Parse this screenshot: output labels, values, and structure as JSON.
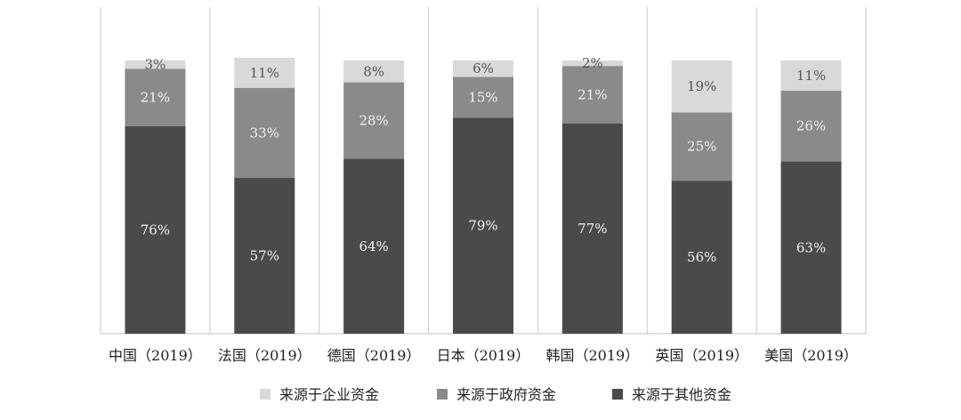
{
  "chart_data": {
    "type": "bar",
    "stacked": true,
    "categories": [
      "中国（2019）",
      "法国（2019）",
      "德国（2019）",
      "日本（2019）",
      "韩国（2019）",
      "英国（2019）",
      "美国（2019）"
    ],
    "series": [
      {
        "name": "来源于其他资金",
        "values": [
          76,
          57,
          64,
          79,
          77,
          56,
          63
        ],
        "color": "#4a4a4a",
        "label_color": "#f2f2f2"
      },
      {
        "name": "来源于政府资金",
        "values": [
          21,
          33,
          28,
          15,
          21,
          25,
          26
        ],
        "color": "#8a8a8a",
        "label_color": "#f2f2f2"
      },
      {
        "name": "来源于企业资金",
        "values": [
          3,
          11,
          8,
          6,
          2,
          19,
          11
        ],
        "color": "#d9d9d9",
        "label_color": "#555555"
      }
    ],
    "legend_order": [
      "来源于企业资金",
      "来源于政府资金",
      "来源于其他资金"
    ],
    "value_suffix": "%",
    "ylim": [
      0,
      100
    ],
    "grid": false,
    "legend_position": "bottom",
    "category_dividers": true
  }
}
